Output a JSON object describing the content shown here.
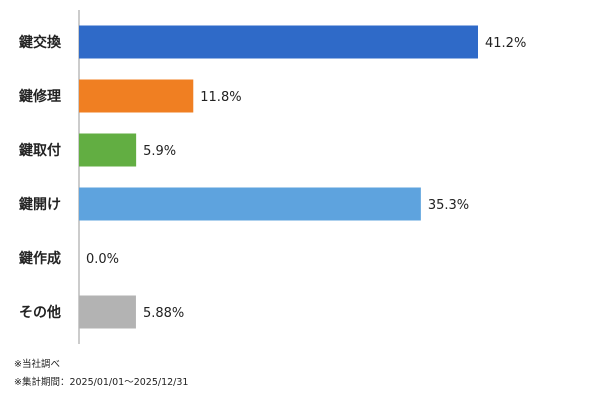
{
  "chart_data": {
    "type": "bar",
    "orientation": "horizontal",
    "categories": [
      "鍵交換",
      "鍵修理",
      "鍵取付",
      "鍵開け",
      "鍵作成",
      "その他"
    ],
    "values": [
      41.2,
      11.8,
      5.9,
      35.3,
      0.0,
      5.88
    ],
    "data_labels": [
      "41.2%",
      "11.8%",
      "5.9%",
      "35.3%",
      "0.0%",
      "5.88%"
    ],
    "colors": [
      "#2f6ac8",
      "#f07f22",
      "#62ae42",
      "#5ea3de",
      "#9e9e9e",
      "#b3b3b3"
    ],
    "xlim": [
      0,
      41.2
    ],
    "grid": false,
    "legend": "none"
  },
  "notes": {
    "source": "※当社調べ",
    "period": "※集計期間：2025/01/01～2025/12/31"
  }
}
